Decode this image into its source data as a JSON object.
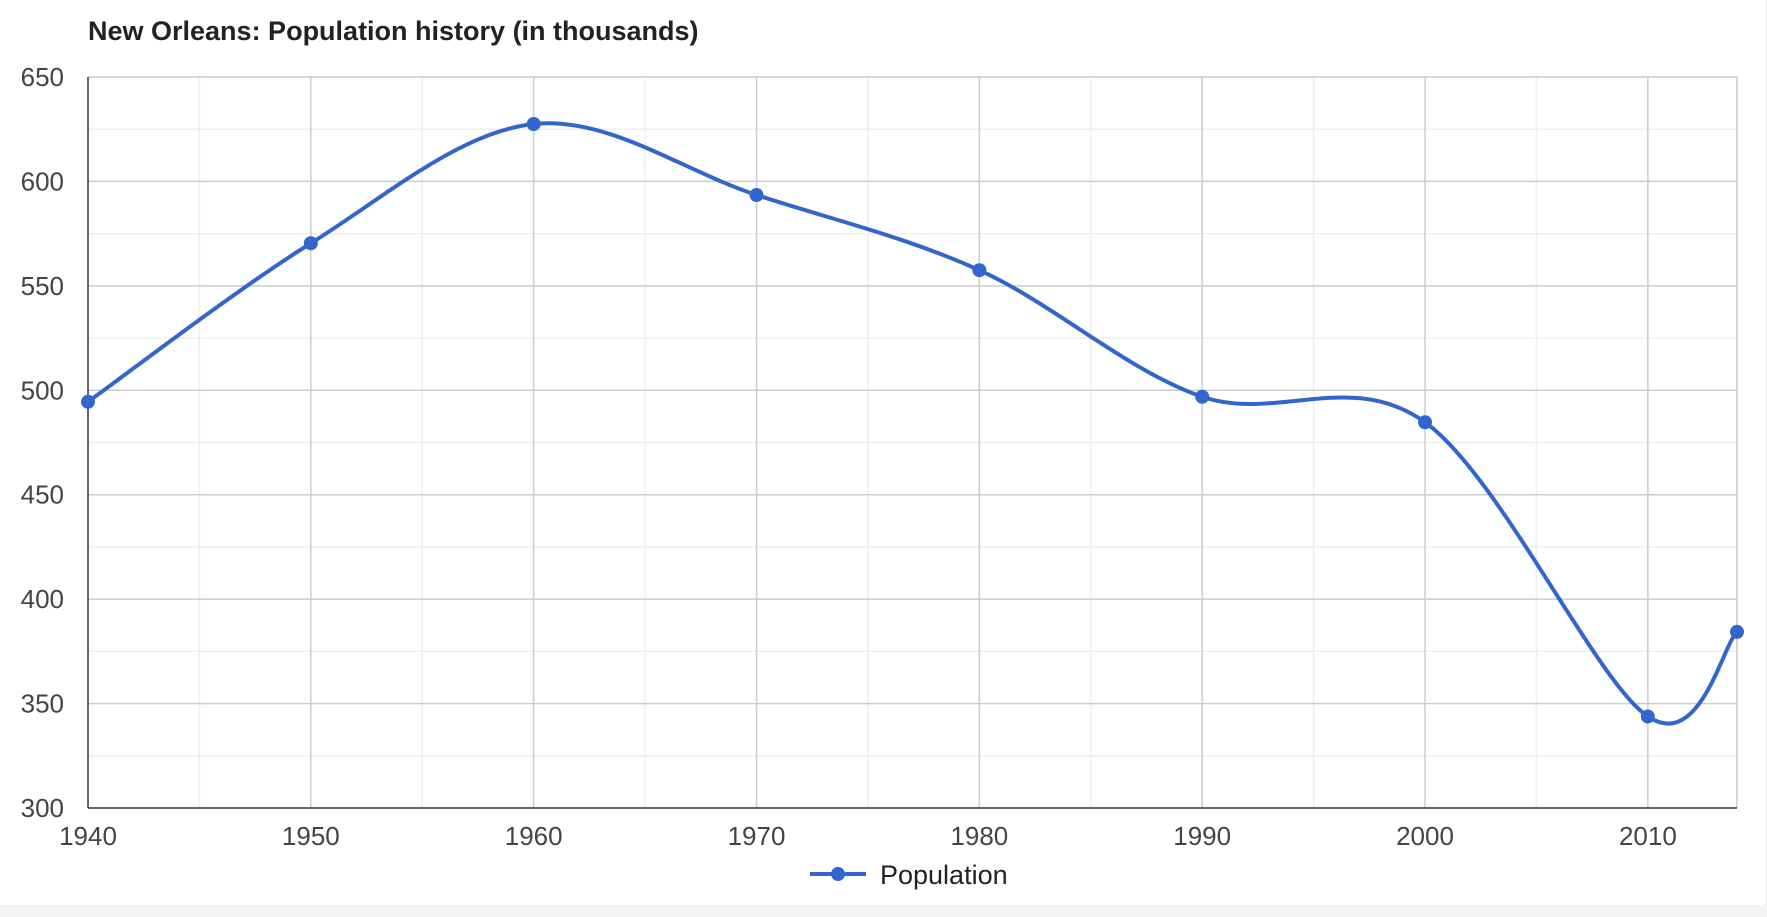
{
  "chart_data": {
    "type": "line",
    "title": "New Orleans: Population history (in thousands)",
    "xlabel": "",
    "ylabel": "",
    "x": [
      1940,
      1950,
      1960,
      1970,
      1980,
      1990,
      2000,
      2010,
      2014
    ],
    "series": [
      {
        "name": "Population",
        "values": [
          494.5,
          570.4,
          627.5,
          593.5,
          557.5,
          496.9,
          484.7,
          343.8,
          384.3
        ],
        "color": "#3366cc"
      }
    ],
    "xlim": [
      1940,
      2014
    ],
    "ylim": [
      300,
      650
    ],
    "x_ticks": [
      1940,
      1950,
      1960,
      1970,
      1980,
      1990,
      2000,
      2010
    ],
    "y_ticks": [
      300,
      350,
      400,
      450,
      500,
      550,
      600,
      650
    ],
    "curve": "smooth",
    "grid": true,
    "legend_position": "bottom"
  }
}
